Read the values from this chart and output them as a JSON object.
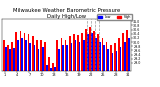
{
  "title": "Milwaukee Weather Barometric Pressure",
  "subtitle": "Daily High/Low",
  "title_fontsize": 3.8,
  "background_color": "#ffffff",
  "bar_color_high": "#ff0000",
  "bar_color_low": "#0000ff",
  "ylim": [
    28.6,
    31.1
  ],
  "yticks": [
    29.0,
    29.2,
    29.4,
    29.6,
    29.8,
    30.0,
    30.2,
    30.4,
    30.6,
    30.8,
    31.0
  ],
  "days": [
    1,
    2,
    3,
    4,
    5,
    6,
    7,
    8,
    9,
    10,
    11,
    12,
    13,
    14,
    15,
    16,
    17,
    18,
    19,
    20,
    21,
    22,
    23,
    24,
    25,
    26,
    27,
    28,
    29,
    30,
    31
  ],
  "highs": [
    30.1,
    29.88,
    30.0,
    30.48,
    30.52,
    30.42,
    30.38,
    30.28,
    30.08,
    30.12,
    30.02,
    29.28,
    29.02,
    30.08,
    30.22,
    30.12,
    30.28,
    30.38,
    30.32,
    30.42,
    30.62,
    30.72,
    30.52,
    30.38,
    30.18,
    30.02,
    29.88,
    29.98,
    30.18,
    30.42,
    30.58
  ],
  "lows": [
    29.78,
    29.68,
    29.72,
    30.08,
    30.18,
    30.08,
    29.98,
    29.88,
    29.68,
    29.78,
    28.88,
    28.78,
    28.82,
    29.68,
    29.88,
    29.88,
    29.98,
    30.08,
    30.02,
    30.12,
    30.38,
    30.42,
    30.18,
    30.02,
    29.88,
    29.68,
    29.48,
    29.58,
    29.78,
    30.02,
    30.18
  ],
  "dashed_vline_indices": [
    20,
    21,
    22,
    23
  ],
  "xtick_step": 3,
  "legend_labels": [
    "Low",
    "High"
  ],
  "legend_colors": [
    "#0000ff",
    "#ff0000"
  ]
}
